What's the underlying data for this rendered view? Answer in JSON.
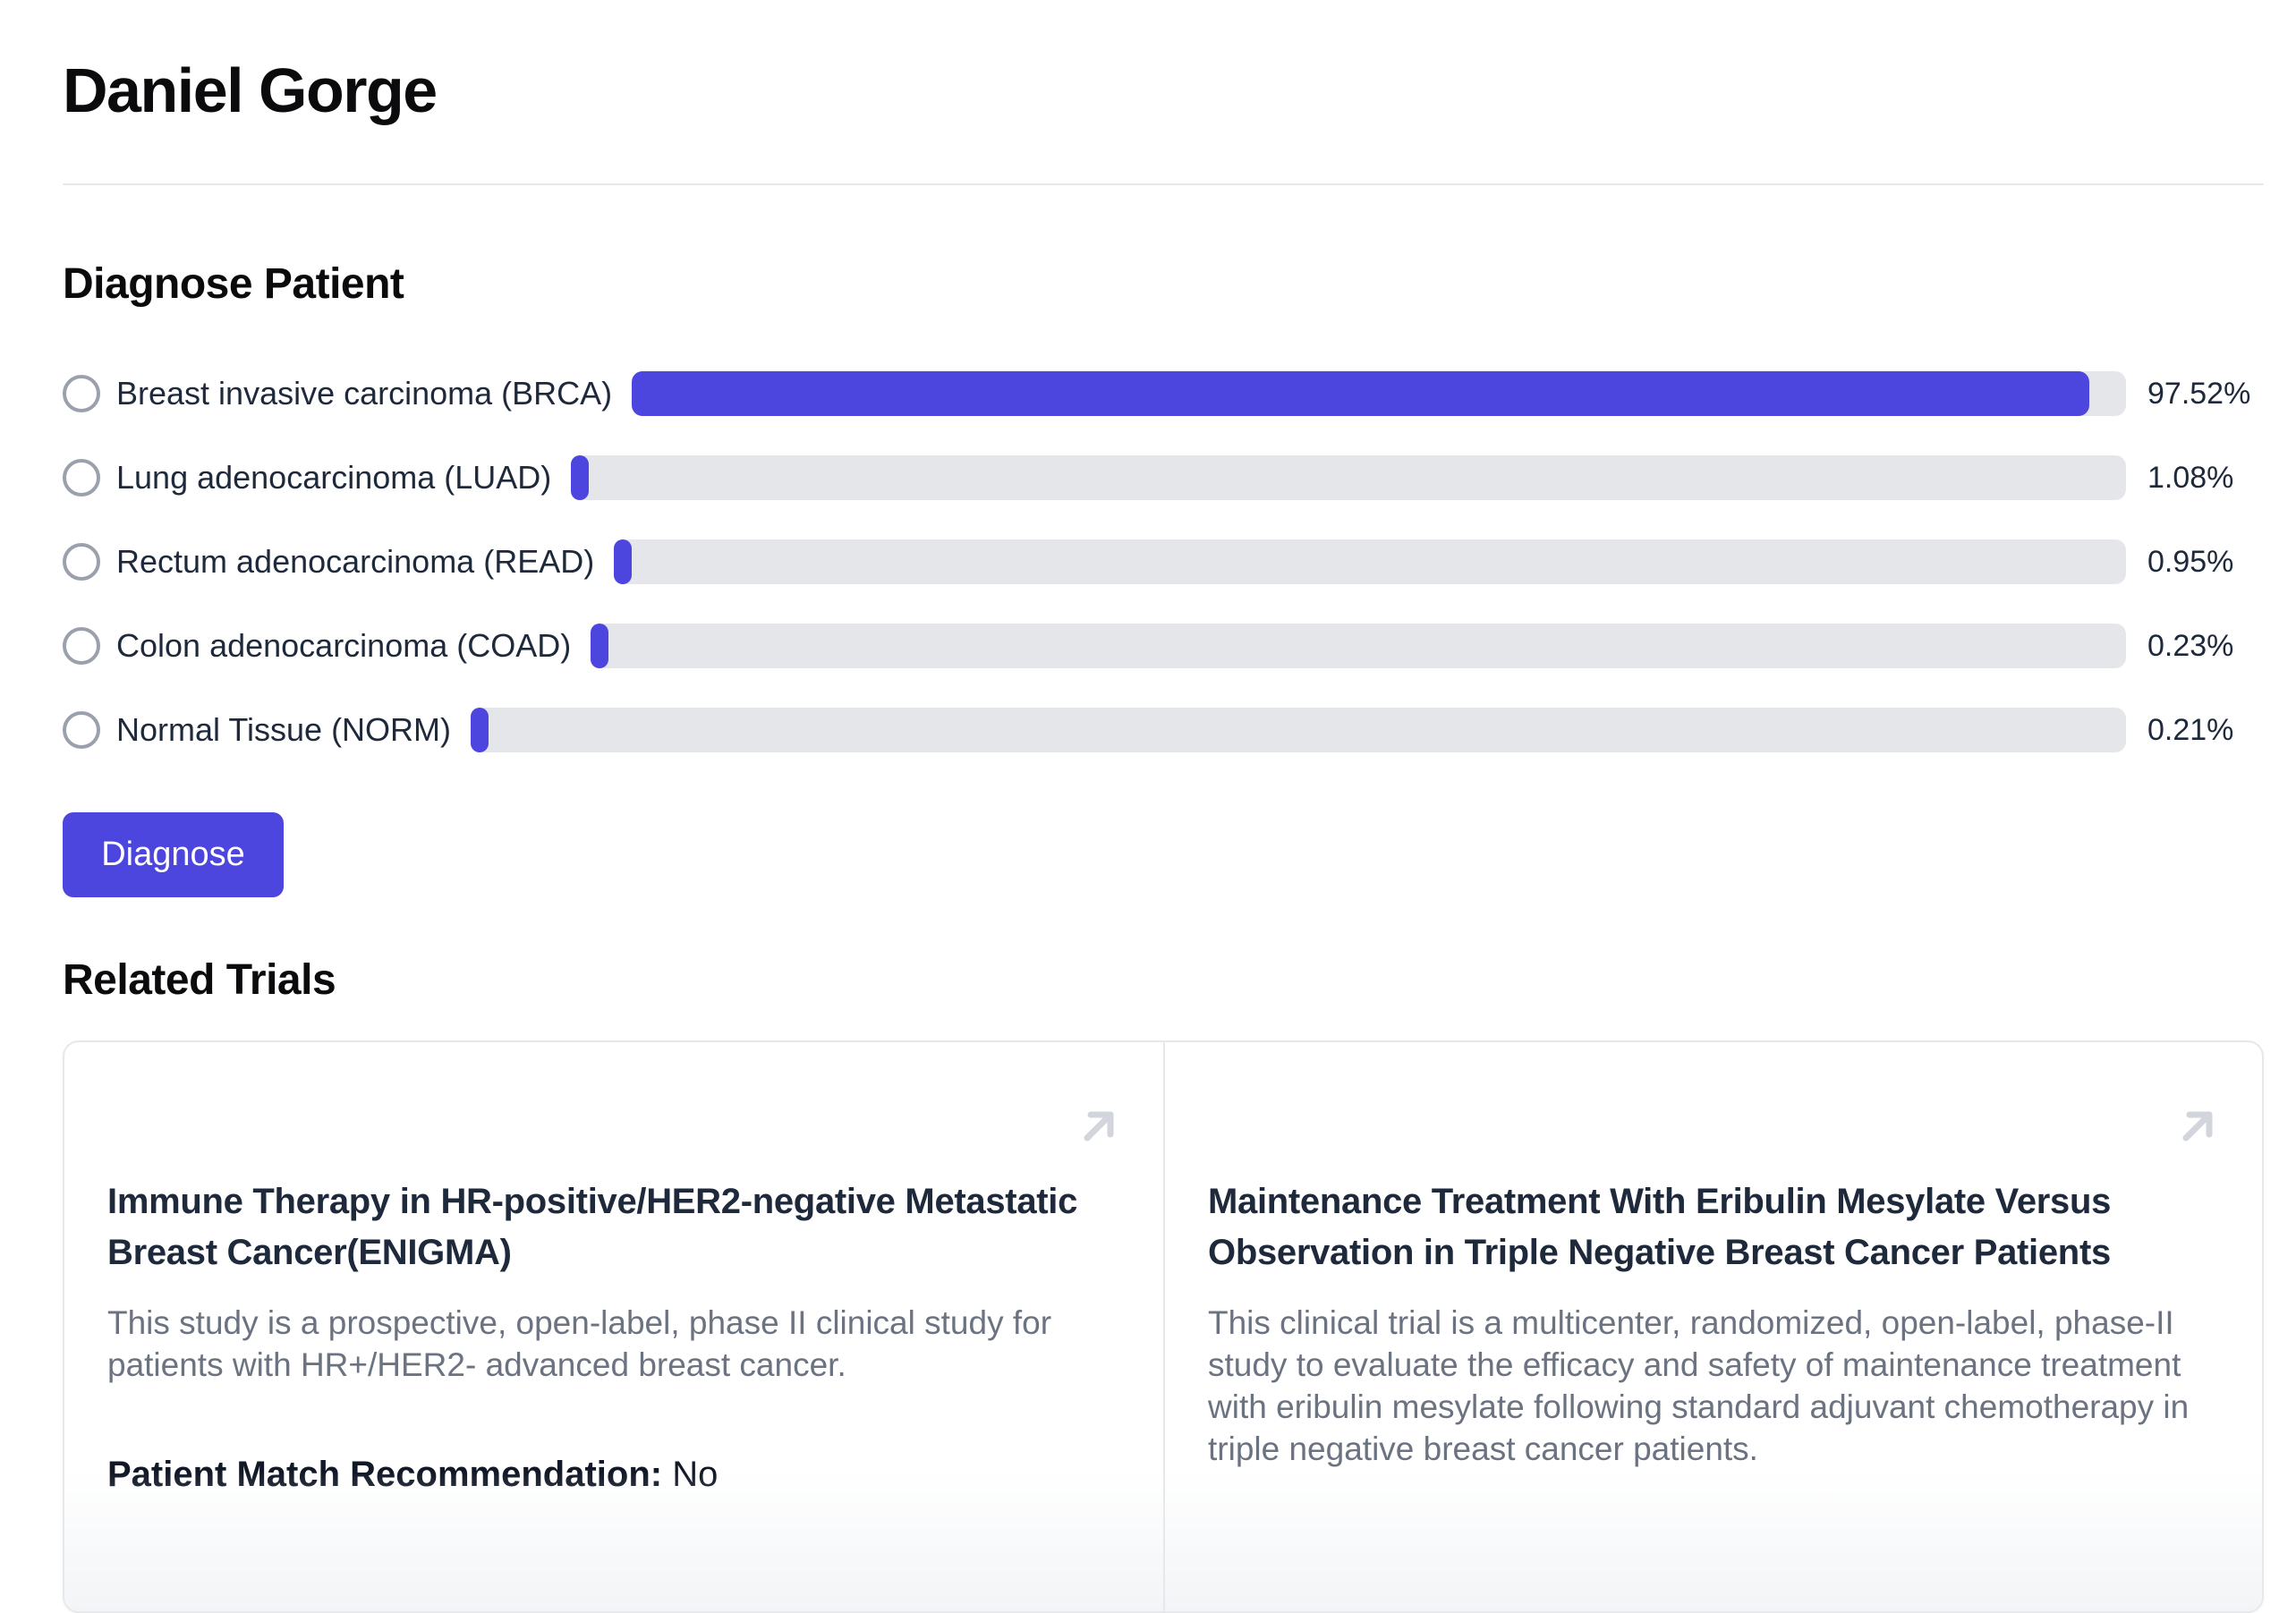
{
  "page": {
    "title": "Daniel Gorge"
  },
  "colors": {
    "accent": "#4c45de",
    "track": "#e5e6ea",
    "radio_border": "#9aa1ac",
    "divider": "#e6e8eb",
    "description_gray": "#6b7280",
    "arrow_icon_gray": "#d2d6dc"
  },
  "diagnose": {
    "heading": "Diagnose Patient",
    "button_label": "Diagnose",
    "rows": [
      {
        "label": "Breast invasive carcinoma (BRCA)",
        "percent": "97.52%",
        "value": 97.52
      },
      {
        "label": "Lung adenocarcinoma (LUAD)",
        "percent": "1.08%",
        "value": 1.08
      },
      {
        "label": "Rectum adenocarcinoma (READ)",
        "percent": "0.95%",
        "value": 0.95
      },
      {
        "label": "Colon adenocarcinoma (COAD)",
        "percent": "0.23%",
        "value": 0.23
      },
      {
        "label": "Normal Tissue (NORM)",
        "percent": "0.21%",
        "value": 0.21
      }
    ]
  },
  "related_trials": {
    "heading": "Related Trials",
    "cards": [
      {
        "title": "Immune Therapy in HR-positive/HER2-negative Metastatic Breast Cancer(ENIGMA)",
        "description": "This study is a prospective, open-label, phase II clinical study for patients with HR+/HER2- advanced breast cancer.",
        "match_label": "Patient Match Recommendation:",
        "match_value": "No"
      },
      {
        "title": "Maintenance Treatment With Eribulin Mesylate Versus Observation in Triple Negative Breast Cancer Patients",
        "description": "This clinical trial is a multicenter, randomized, open-label, phase-II study to evaluate the efficacy and safety of maintenance treatment with eribulin mesylate following standard adjuvant chemotherapy in triple negative breast cancer patients."
      }
    ]
  }
}
